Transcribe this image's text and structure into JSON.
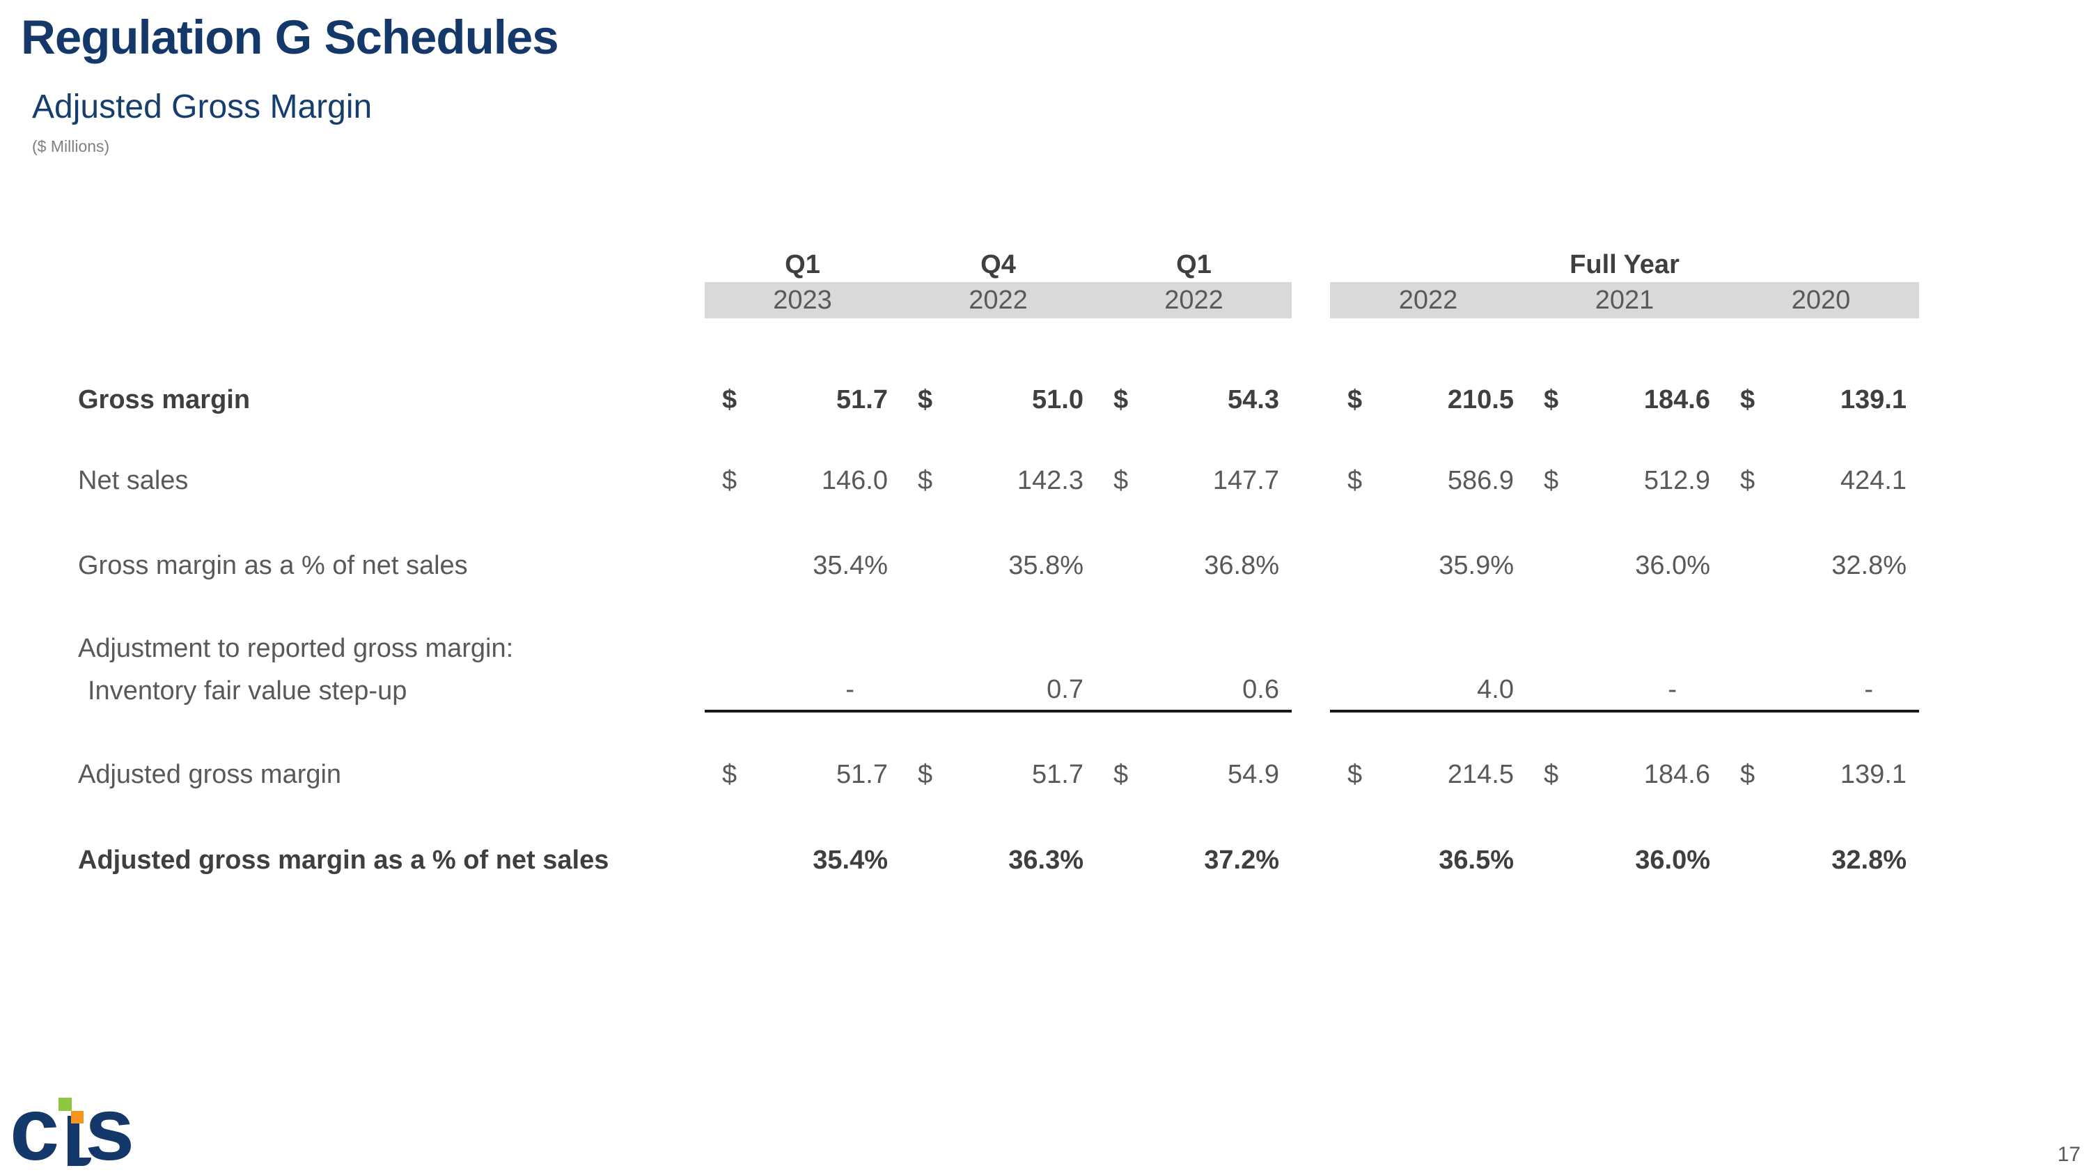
{
  "slide": {
    "title": "Regulation G Schedules",
    "subtitle": "Adjusted Gross Margin",
    "units_note": "($ Millions)",
    "page_number": "17"
  },
  "logo": {
    "letters": [
      "c",
      "s"
    ],
    "name": "CTS logo"
  },
  "colors": {
    "navy": "#14386A",
    "band_gray": "#D9D9D9",
    "text_gray": "#595959",
    "text_dark": "#3F3F3F",
    "logo_green": "#8DC63F",
    "logo_orange": "#F7941E"
  },
  "table": {
    "period_headers": [
      "Q1",
      "Q4",
      "Q1"
    ],
    "full_year_header": "Full Year",
    "quarter_years": [
      "2023",
      "2022",
      "2022"
    ],
    "full_year_years": [
      "2022",
      "2021",
      "2020"
    ],
    "rows": [
      {
        "label": "Gross margin",
        "currency": "$",
        "values": [
          "51.7",
          "51.0",
          "54.3",
          "210.5",
          "184.6",
          "139.1"
        ]
      },
      {
        "label": "Net sales",
        "currency": "$",
        "values": [
          "146.0",
          "142.3",
          "147.7",
          "586.9",
          "512.9",
          "424.1"
        ]
      },
      {
        "label": "Gross margin as a % of net sales",
        "values": [
          "35.4%",
          "35.8%",
          "36.8%",
          "35.9%",
          "36.0%",
          "32.8%"
        ]
      },
      {
        "label": "Adjustment to reported gross margin:"
      },
      {
        "label": "Inventory fair value step-up",
        "values": [
          "-",
          "0.7",
          "0.6",
          "4.0",
          "-",
          "-"
        ]
      },
      {
        "label": "Adjusted gross margin",
        "currency": "$",
        "values": [
          "51.7",
          "51.7",
          "54.9",
          "214.5",
          "184.6",
          "139.1"
        ]
      },
      {
        "label": "Adjusted gross margin as a % of net sales",
        "values": [
          "35.4%",
          "36.3%",
          "37.2%",
          "36.5%",
          "36.0%",
          "32.8%"
        ]
      }
    ]
  }
}
